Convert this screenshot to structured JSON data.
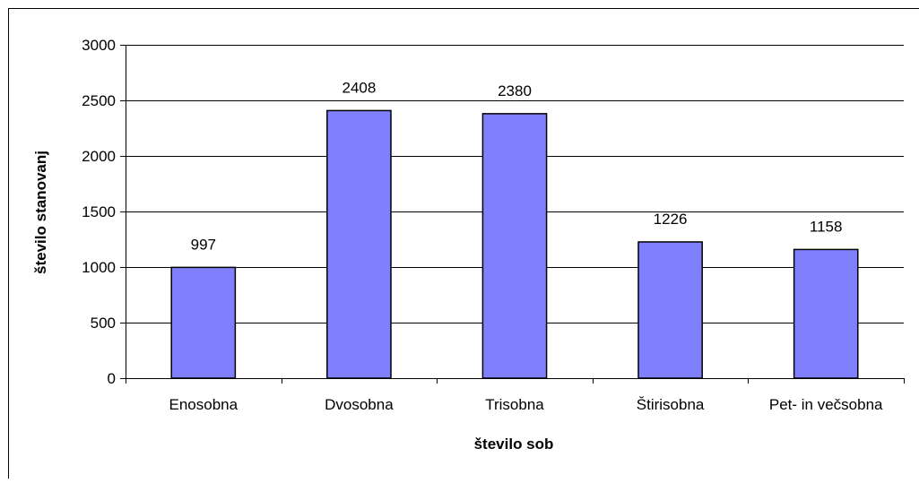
{
  "chart_data": {
    "type": "bar",
    "title": "",
    "xlabel": "število sob",
    "ylabel": "število stanovanj",
    "categories": [
      "Enosobna",
      "Dvosobna",
      "Trisobna",
      "Štirisobna",
      "Pet- in večsobna"
    ],
    "values": [
      997,
      2408,
      2380,
      1226,
      1158
    ],
    "ylim": [
      0,
      3000
    ],
    "yticks": [
      0,
      500,
      1000,
      1500,
      2000,
      2500,
      3000
    ],
    "grid": true,
    "legend": "none",
    "bar_color": "#8080ff",
    "bar_border_color": "#000000",
    "gridline_color": "#000000"
  }
}
